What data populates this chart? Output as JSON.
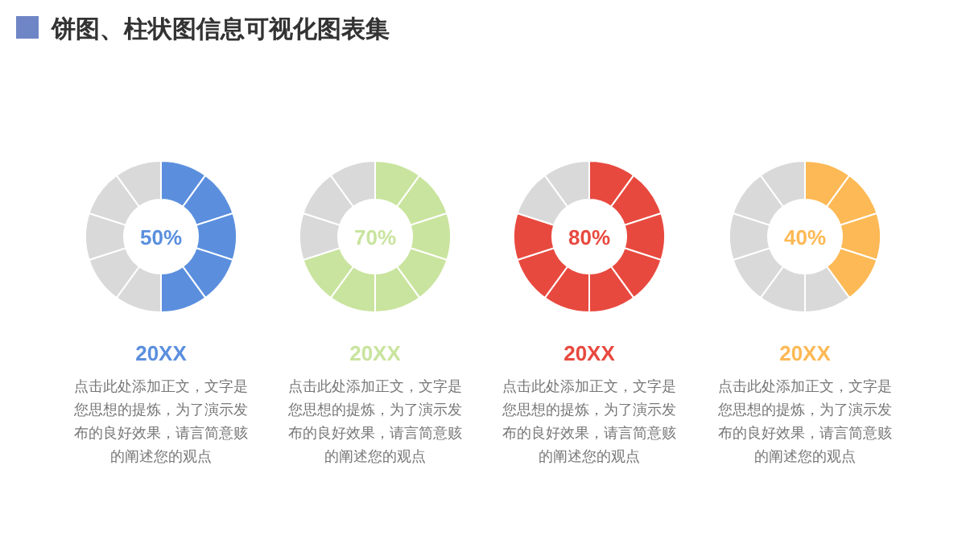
{
  "chart_data": [
    {
      "type": "donut",
      "subtitle": "饼图、柱状图信息可视化图表集",
      "title": "20XX",
      "categories": [
        null,
        null,
        null,
        null,
        null,
        null,
        null,
        null,
        null,
        null
      ],
      "values": [
        10,
        10,
        10,
        10,
        10,
        10,
        10,
        10,
        10,
        10
      ],
      "colors": [
        "#5b8fde",
        "#5b8fde",
        "#5b8fde",
        "#5b8fde",
        "#5b8fde",
        "#d9d9d9",
        "#d9d9d9",
        "#d9d9d9",
        "#d9d9d9",
        "#d9d9d9"
      ],
      "annotations": [
        "50%",
        "点击此处添加正文，文字是您思想的提炼，为了演示发布的良好效果，请言简意赅的阐述您的观点"
      ]
    },
    {
      "type": "donut",
      "title": "20XX",
      "categories": [
        null,
        null,
        null,
        null,
        null,
        null,
        null,
        null,
        null,
        null
      ],
      "values": [
        10,
        10,
        10,
        10,
        10,
        10,
        10,
        10,
        10,
        10
      ],
      "colors": [
        "#c9e49e",
        "#c9e49e",
        "#c9e49e",
        "#c9e49e",
        "#c9e49e",
        "#c9e49e",
        "#c9e49e",
        "#d9d9d9",
        "#d9d9d9",
        "#d9d9d9"
      ],
      "annotations": [
        "70%",
        "点击此处添加正文，文字是您思想的提炼，为了演示发布的良好效果，请言简意赅的阐述您的观点"
      ]
    },
    {
      "type": "donut",
      "title": "20XX",
      "categories": [
        null,
        null,
        null,
        null,
        null,
        null,
        null,
        null,
        null,
        null
      ],
      "values": [
        10,
        10,
        10,
        10,
        10,
        10,
        10,
        10,
        10,
        10
      ],
      "colors": [
        "#e8493f",
        "#e8493f",
        "#e8493f",
        "#e8493f",
        "#e8493f",
        "#e8493f",
        "#e8493f",
        "#e8493f",
        "#d9d9d9",
        "#d9d9d9"
      ],
      "annotations": [
        "80%",
        "点击此处添加正文，文字是您思想的提炼，为了演示发布的良好效果，请言简意赅的阐述您的观点"
      ]
    },
    {
      "type": "donut",
      "title": "20XX",
      "categories": [
        null,
        null,
        null,
        null,
        null,
        null,
        null,
        null,
        null,
        null
      ],
      "values": [
        10,
        10,
        10,
        10,
        10,
        10,
        10,
        10,
        10,
        10
      ],
      "colors": [
        "#fdb955",
        "#fdb955",
        "#fdb955",
        "#fdb955",
        "#d9d9d9",
        "#d9d9d9",
        "#d9d9d9",
        "#d9d9d9",
        "#d9d9d9",
        "#d9d9d9"
      ],
      "annotations": [
        "40%",
        "点击此处添加正文，文字是您思想的提炼，为了演示发布的良好效果，请言简意赅的阐述您的观点"
      ]
    }
  ]
}
